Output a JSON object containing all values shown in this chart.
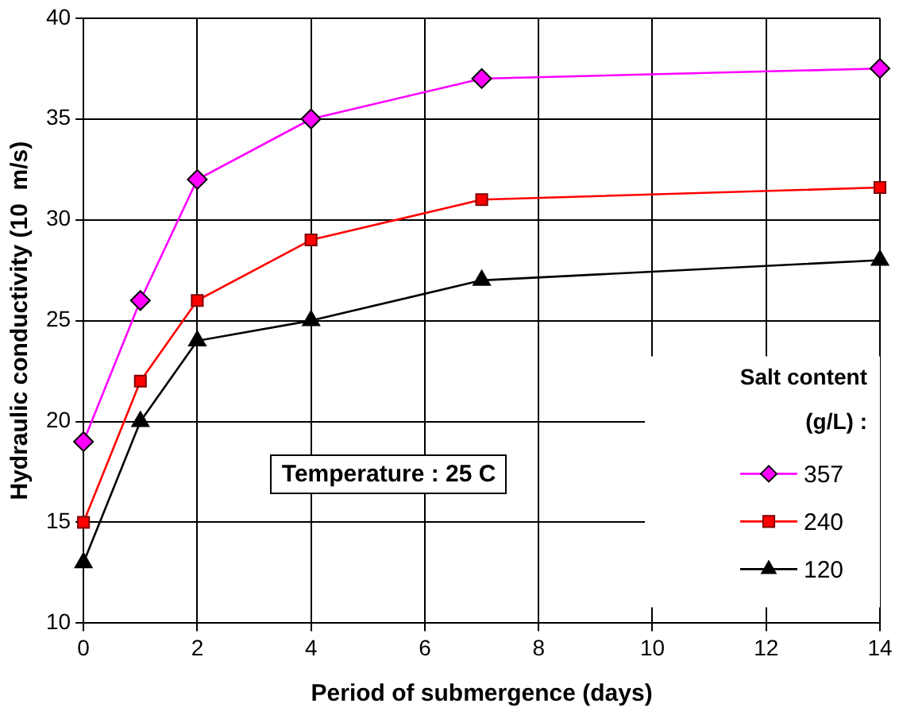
{
  "chart_data": {
    "type": "line",
    "xlabel": "Period of submergence (days)",
    "ylabel": "Hydraulic conductivity (10  m/s)",
    "legend_title": "Salt content\n(g/L) :",
    "legend": "right",
    "grid": true,
    "x": [
      0,
      1,
      2,
      4,
      7,
      14
    ],
    "xlim": [
      0,
      14
    ],
    "xticks": [
      0,
      2,
      4,
      6,
      8,
      10,
      12,
      14
    ],
    "ylim": [
      10,
      40
    ],
    "yticks": [
      10,
      15,
      20,
      25,
      30,
      35,
      40
    ],
    "annotations": [
      "Temperature : 25  C"
    ],
    "series": [
      {
        "name": "357",
        "color": "#ff00ff",
        "marker": "diamond",
        "values": [
          19,
          26,
          32,
          35,
          37,
          37.5
        ]
      },
      {
        "name": "240",
        "color": "#ff0000",
        "marker": "square",
        "values": [
          15,
          22,
          26,
          29,
          31,
          31.6
        ]
      },
      {
        "name": "120",
        "color": "#000000",
        "marker": "triangle",
        "values": [
          13,
          20,
          24,
          25,
          27,
          28
        ]
      }
    ]
  }
}
